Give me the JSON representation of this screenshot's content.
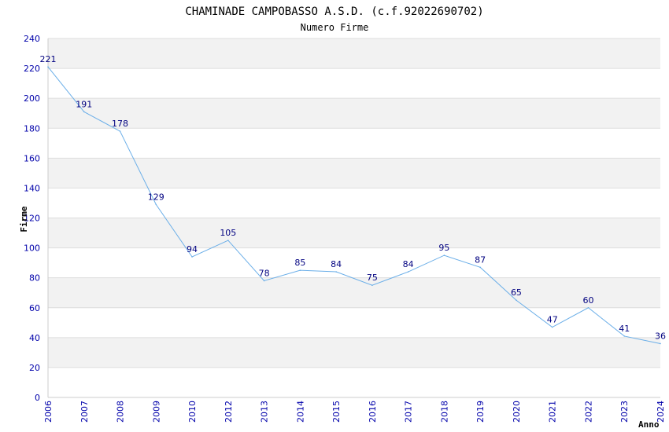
{
  "chart_data": {
    "type": "line",
    "title": "CHAMINADE CAMPOBASSO A.S.D. (c.f.92022690702)",
    "subtitle": "Numero Firme",
    "xlabel": "Anno",
    "ylabel": "Firme",
    "categories": [
      "2006",
      "2007",
      "2008",
      "2009",
      "2010",
      "2012",
      "2013",
      "2014",
      "2015",
      "2016",
      "2017",
      "2018",
      "2019",
      "2020",
      "2021",
      "2022",
      "2023",
      "2024"
    ],
    "values": [
      221,
      191,
      178,
      129,
      94,
      105,
      78,
      85,
      84,
      75,
      84,
      95,
      87,
      65,
      47,
      60,
      41,
      36
    ],
    "ylim": [
      0,
      240
    ],
    "yticks": [
      0,
      20,
      40,
      60,
      80,
      100,
      120,
      140,
      160,
      180,
      200,
      220,
      240
    ],
    "grid": true,
    "line_color": "#6aaee8",
    "label_color": "#000080",
    "tick_color": "#0000aa",
    "band_color": "#f2f2f2"
  }
}
